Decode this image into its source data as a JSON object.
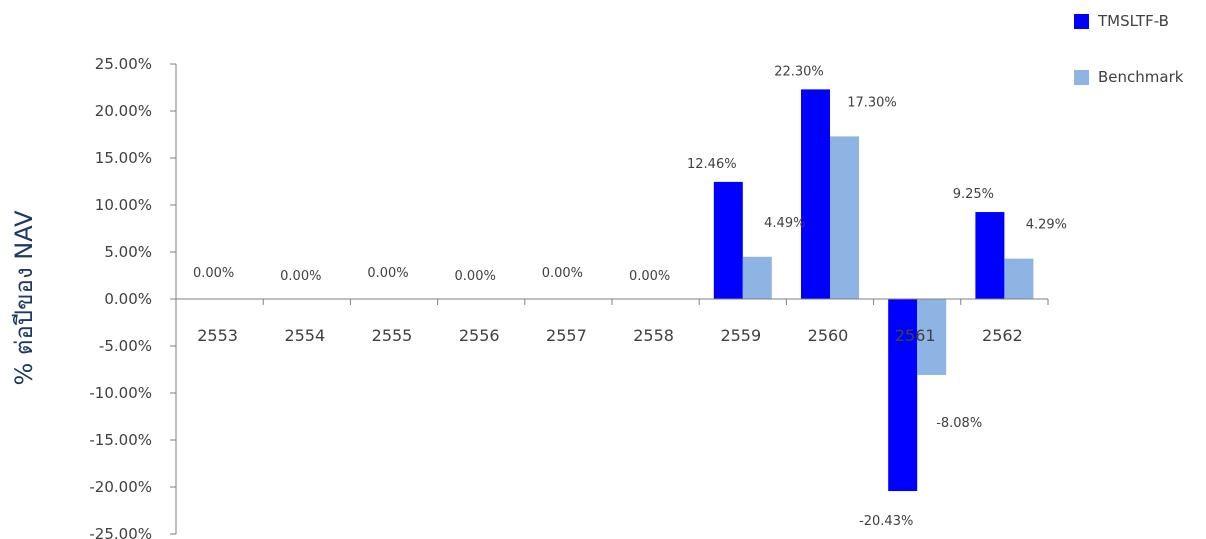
{
  "chart_data": {
    "type": "bar",
    "ylabel": "% ต่อปีของ NAV",
    "categories": [
      "2553",
      "2554",
      "2555",
      "2556",
      "2557",
      "2558",
      "2559",
      "2560",
      "2561",
      "2562"
    ],
    "series": [
      {
        "name": "TMSLTF-B",
        "color": "#0000ff",
        "values": [
          0,
          0,
          0,
          0,
          0,
          0,
          12.46,
          22.3,
          -20.43,
          9.25
        ],
        "labels": [
          "0.00%",
          "0.00%",
          "0.00%",
          "0.00%",
          "0.00%",
          "0.00%",
          "12.46%",
          "22.30%",
          "-20.43%",
          "9.25%"
        ]
      },
      {
        "name": "Benchmark",
        "color": "#8db4e2",
        "values": [
          0,
          0,
          0,
          0,
          0,
          0,
          4.49,
          17.3,
          -8.08,
          4.29
        ],
        "labels": [
          "",
          "",
          "",
          "",
          "",
          "",
          "4.49%",
          "17.30%",
          "-8.08%",
          "4.29%"
        ]
      }
    ],
    "ylim": [
      -25,
      25
    ],
    "yticks": [
      "25.00%",
      "20.00%",
      "15.00%",
      "10.00%",
      "5.00%",
      "0.00%",
      "-5.00%",
      "-10.00%",
      "-15.00%",
      "-20.00%",
      "-25.00%"
    ],
    "ytick_values": [
      25,
      20,
      15,
      10,
      5,
      0,
      -5,
      -10,
      -15,
      -20,
      -25
    ],
    "grid": false,
    "legend_position": "top-right"
  }
}
